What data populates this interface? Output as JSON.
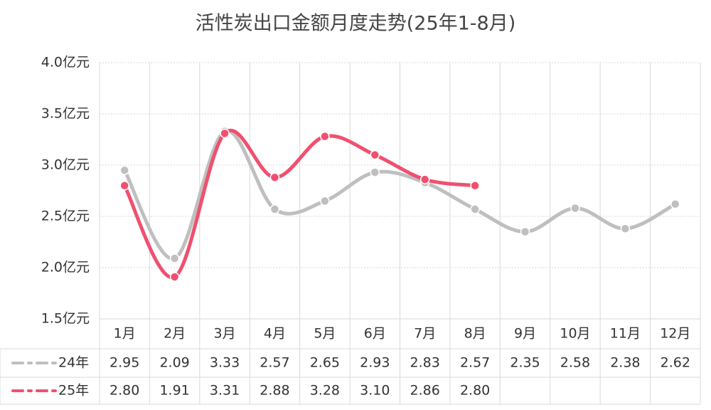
{
  "chart_data": {
    "type": "line",
    "title": "活性炭出口金额月度走势(25年1-8月)",
    "categories": [
      "1月",
      "2月",
      "3月",
      "4月",
      "5月",
      "6月",
      "7月",
      "8月",
      "9月",
      "10月",
      "11月",
      "12月"
    ],
    "series": [
      {
        "name": "24年",
        "color": "#bfbfbf",
        "values": [
          2.95,
          2.09,
          3.33,
          2.57,
          2.65,
          2.93,
          2.83,
          2.57,
          2.35,
          2.58,
          2.38,
          2.62
        ],
        "value_labels": [
          "2.95",
          "2.09",
          "3.33",
          "2.57",
          "2.65",
          "2.93",
          "2.83",
          "2.57",
          "2.35",
          "2.58",
          "2.38",
          "2.62"
        ]
      },
      {
        "name": "25年",
        "color": "#f0506e",
        "values": [
          2.8,
          1.91,
          3.31,
          2.88,
          3.28,
          3.1,
          2.86,
          2.8,
          null,
          null,
          null,
          null
        ],
        "value_labels": [
          "2.80",
          "1.91",
          "3.31",
          "2.88",
          "3.28",
          "3.10",
          "2.86",
          "2.80",
          null,
          null,
          null,
          null
        ]
      }
    ],
    "ylim": [
      1.5,
      4
    ],
    "yticks": [
      {
        "value": 1.5,
        "label": "1.5亿元"
      },
      {
        "value": 2,
        "label": "2.0亿元"
      },
      {
        "value": 2.5,
        "label": "2.5亿元"
      },
      {
        "value": 3,
        "label": "3.0亿元"
      },
      {
        "value": 3.5,
        "label": "3.5亿元"
      },
      {
        "value": 4,
        "label": "4.0亿元"
      }
    ],
    "grid": true
  }
}
